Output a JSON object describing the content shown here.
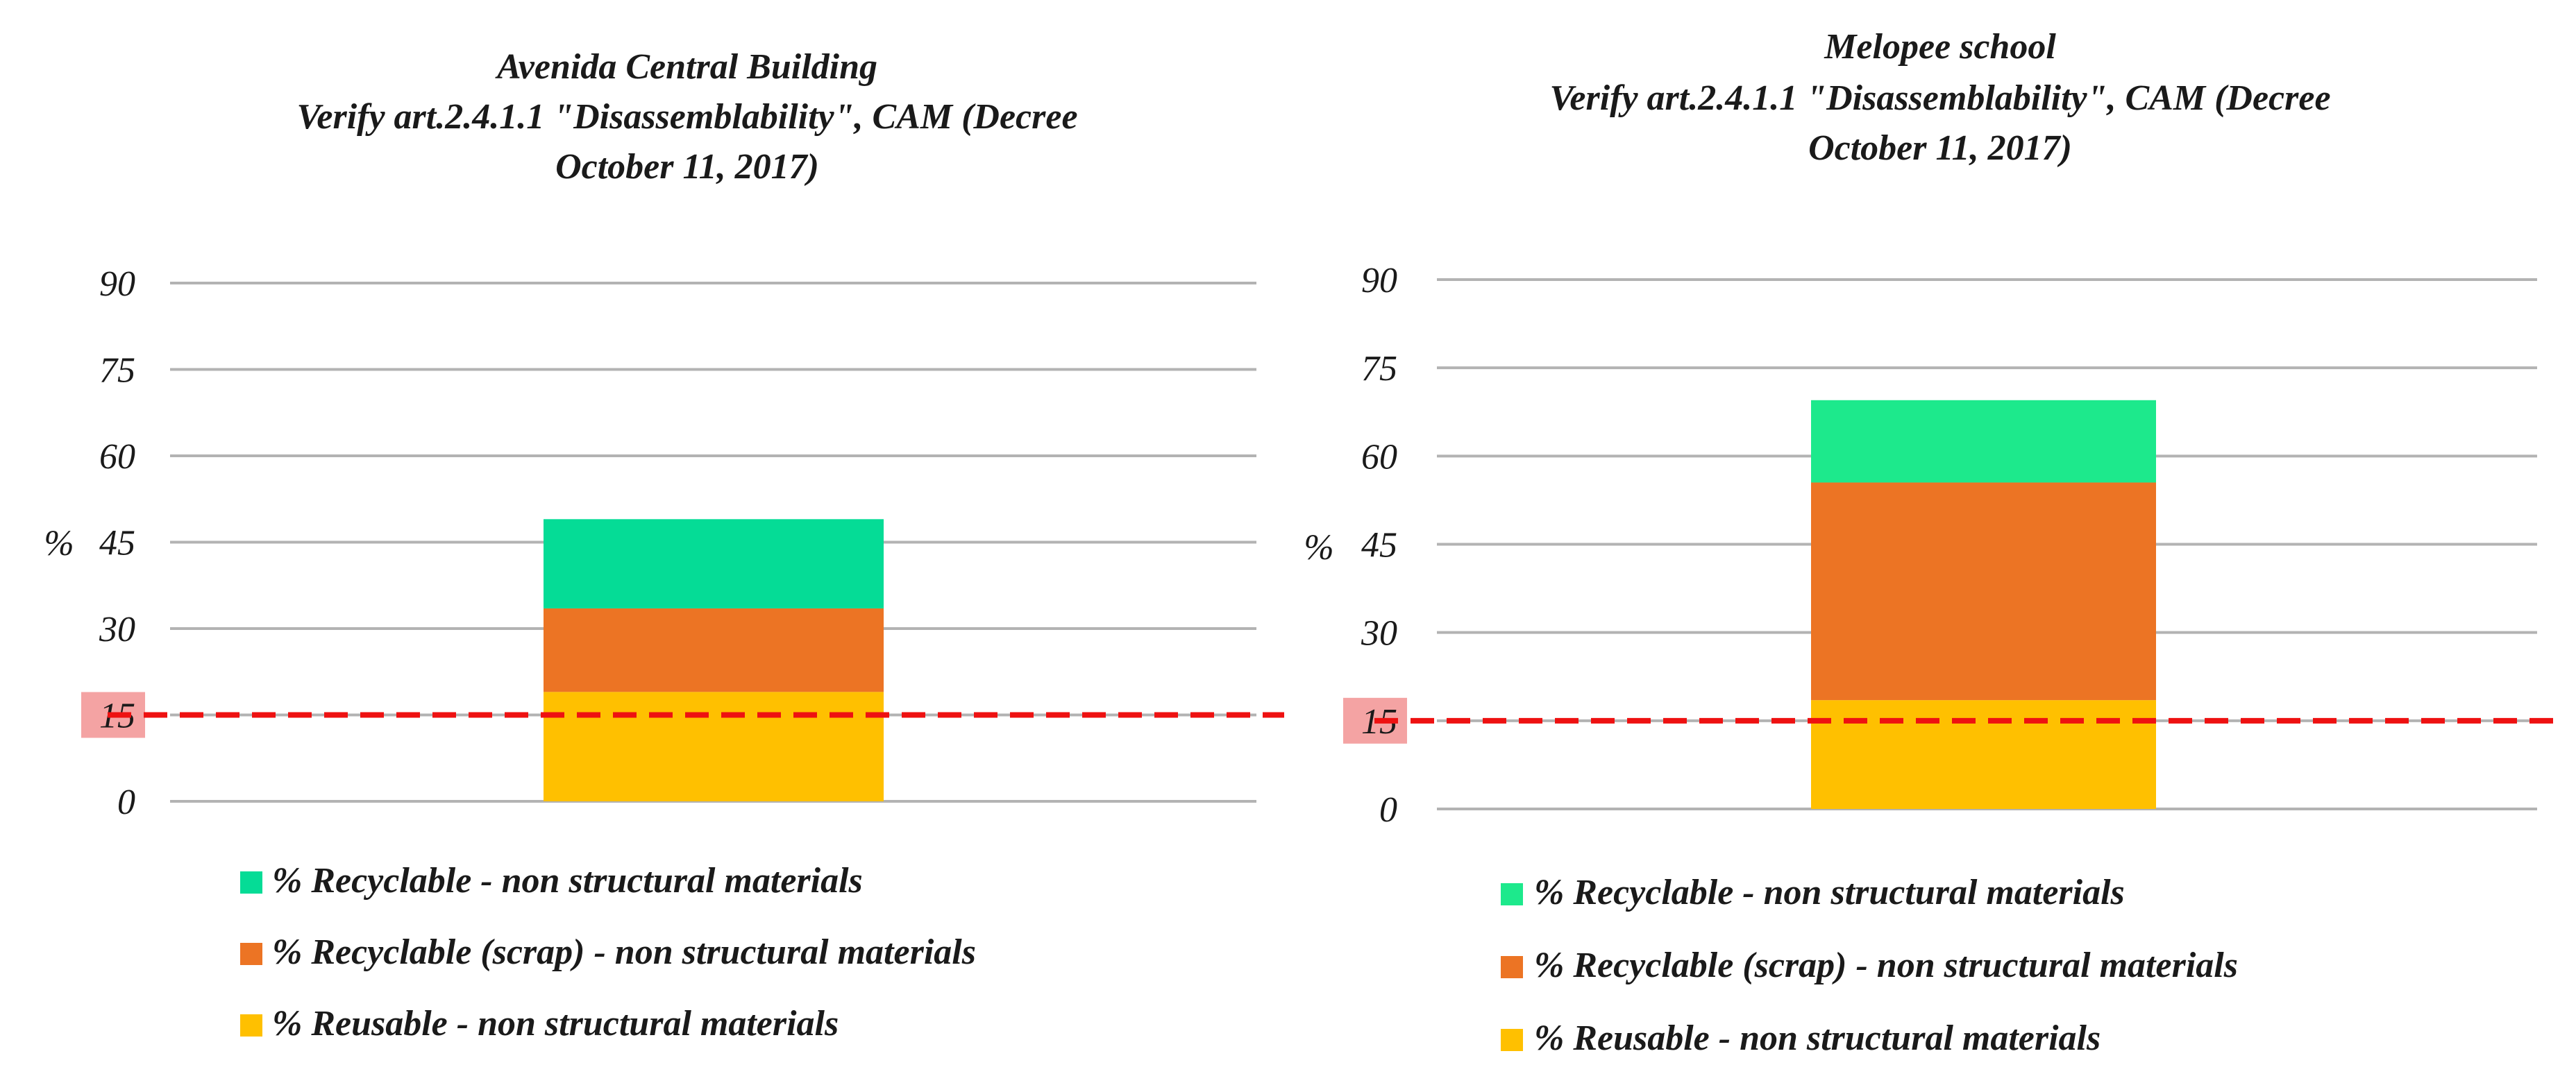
{
  "chart_data": [
    {
      "type": "bar",
      "stacked": true,
      "title_lines": [
        "Avenida Central Building",
        "Verify art.2.4.1.1 \"Disassemblability\", CAM (Decree",
        "October 11, 2017)"
      ],
      "ylabel": "%",
      "yticks": [
        "0",
        "15",
        "30",
        "45",
        "60",
        "75",
        "90"
      ],
      "ylim": [
        0,
        90
      ],
      "grid": true,
      "threshold": {
        "value": 15,
        "label": "15",
        "color": "#ee1111",
        "label_bg": "#f4a3a3"
      },
      "categories": [
        ""
      ],
      "series": [
        {
          "name": "% Reusable - non structural materials",
          "values": [
            19
          ],
          "color": "#ffc000"
        },
        {
          "name": "% Recyclable (scrap) - non structural materials",
          "values": [
            14.5
          ],
          "color": "#ec7424"
        },
        {
          "name": "% Recyclable - non structural materials",
          "values": [
            15.5
          ],
          "color": "#05dc96"
        }
      ],
      "legend": {
        "position": "bottom-left",
        "items": [
          {
            "label": "% Recyclable - non structural materials",
            "color": "#05dc96"
          },
          {
            "label": "% Recyclable (scrap) - non structural materials",
            "color": "#ec7424"
          },
          {
            "label": "% Reusable - non structural materials",
            "color": "#ffc000"
          }
        ]
      }
    },
    {
      "type": "bar",
      "stacked": true,
      "title_lines": [
        "Melopee school",
        "Verify art.2.4.1.1 \"Disassemblability\", CAM (Decree",
        "October 11, 2017)"
      ],
      "ylabel": "%",
      "yticks": [
        "0",
        "15",
        "30",
        "45",
        "60",
        "75",
        "90"
      ],
      "ylim": [
        0,
        90
      ],
      "grid": true,
      "threshold": {
        "value": 15,
        "label": "15",
        "color": "#ee1111",
        "label_bg": "#f4a3a3"
      },
      "categories": [
        ""
      ],
      "series": [
        {
          "name": "% Reusable - non structural materials",
          "values": [
            18.5
          ],
          "color": "#ffc000"
        },
        {
          "name": "% Recyclable (scrap) - non structural materials",
          "values": [
            37
          ],
          "color": "#ec7424"
        },
        {
          "name": "% Recyclable - non structural materials",
          "values": [
            14
          ],
          "color": "#1de98c"
        }
      ],
      "legend": {
        "position": "bottom-left",
        "items": [
          {
            "label": "% Recyclable - non structural materials",
            "color": "#1de98c"
          },
          {
            "label": "% Recyclable (scrap) - non structural materials",
            "color": "#ec7424"
          },
          {
            "label": "% Reusable - non structural materials",
            "color": "#ffc000"
          }
        ]
      }
    }
  ]
}
